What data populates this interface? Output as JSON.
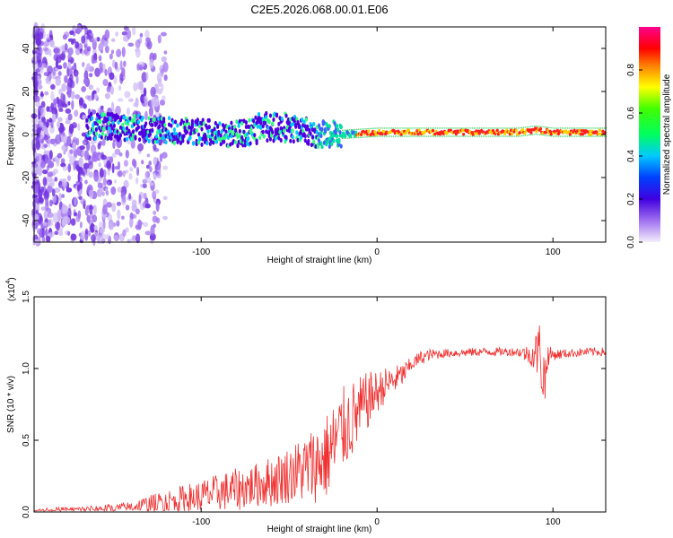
{
  "title": "C2E5.2026.068.00.01.E06",
  "colors": {
    "snr_line": "#f03030",
    "axis": "#000000",
    "spectrogram_band": [
      "#5000e0",
      "#00c0ff",
      "#00ff80",
      "#ffe000",
      "#ff2000"
    ],
    "noise": "#a070f0"
  },
  "chart_data": [
    {
      "type": "heatmap",
      "xlabel": "Height of straight line (km)",
      "ylabel": "Frequency (Hz)",
      "xlim": [
        -195,
        130
      ],
      "ylim": [
        -50,
        50
      ],
      "x_ticks": [
        -100,
        0,
        100
      ],
      "x_tick_labels": [
        "-100",
        "0",
        "100"
      ],
      "y_ticks": [
        -40,
        -20,
        0,
        20,
        40
      ],
      "y_tick_labels": [
        "-40",
        "-20",
        "0",
        "20",
        "40"
      ],
      "colorbar": {
        "label": "Normalized spectral amplitude",
        "range": [
          0.0,
          1.0
        ],
        "ticks": [
          0.0,
          0.2,
          0.4,
          0.6,
          0.8
        ],
        "tick_labels": [
          "0.0",
          "0.2",
          "0.4",
          "0.6",
          "0.8"
        ]
      },
      "band": {
        "description": "dominant frequency line",
        "x": [
          -160,
          -140,
          -120,
          -100,
          -80,
          -60,
          -40,
          -20,
          0,
          20,
          40,
          60,
          80,
          90,
          100,
          130
        ],
        "center_hz": [
          4,
          3,
          2,
          1,
          0,
          2,
          0,
          0,
          1,
          1,
          1,
          1,
          1,
          2,
          1,
          1
        ],
        "amplitude": [
          0.25,
          0.3,
          0.3,
          0.35,
          0.3,
          0.35,
          0.4,
          0.55,
          0.9,
          0.9,
          0.9,
          0.9,
          0.85,
          0.75,
          0.9,
          0.9
        ]
      }
    },
    {
      "type": "line",
      "xlabel": "Height of straight line (km)",
      "ylabel": "SNR (10 * v/v)",
      "scale_label": "(x10",
      "scale_exponent": "4",
      "xlim": [
        -195,
        130
      ],
      "ylim": [
        0.0,
        1.5
      ],
      "x_ticks": [
        -100,
        0,
        100
      ],
      "x_tick_labels": [
        "-100",
        "0",
        "100"
      ],
      "y_ticks": [
        0.0,
        0.5,
        1.0,
        1.5
      ],
      "y_tick_labels": [
        "0.0",
        "0.5",
        "1.0",
        "1.5"
      ],
      "series": [
        {
          "name": "SNR",
          "x": [
            -195,
            -170,
            -150,
            -140,
            -130,
            -120,
            -110,
            -100,
            -90,
            -80,
            -70,
            -60,
            -50,
            -40,
            -30,
            -25,
            -20,
            -15,
            -10,
            -5,
            0,
            5,
            10,
            15,
            20,
            25,
            30,
            40,
            60,
            80,
            88,
            93,
            95,
            97,
            100,
            110,
            120,
            130
          ],
          "values": [
            0.01,
            0.02,
            0.03,
            0.04,
            0.06,
            0.08,
            0.1,
            0.12,
            0.15,
            0.17,
            0.2,
            0.23,
            0.28,
            0.33,
            0.4,
            0.48,
            0.6,
            0.66,
            0.72,
            0.8,
            0.85,
            0.9,
            0.93,
            0.97,
            1.04,
            1.08,
            1.1,
            1.11,
            1.12,
            1.12,
            1.1,
            1.15,
            0.9,
            1.1,
            1.1,
            1.11,
            1.12,
            1.12
          ],
          "noise": [
            0.02,
            0.02,
            0.03,
            0.04,
            0.06,
            0.08,
            0.1,
            0.12,
            0.13,
            0.15,
            0.15,
            0.18,
            0.2,
            0.25,
            0.3,
            0.32,
            0.3,
            0.28,
            0.25,
            0.2,
            0.15,
            0.12,
            0.1,
            0.08,
            0.05,
            0.05,
            0.04,
            0.03,
            0.03,
            0.03,
            0.08,
            0.25,
            0.3,
            0.08,
            0.04,
            0.03,
            0.03,
            0.03
          ]
        }
      ]
    }
  ]
}
